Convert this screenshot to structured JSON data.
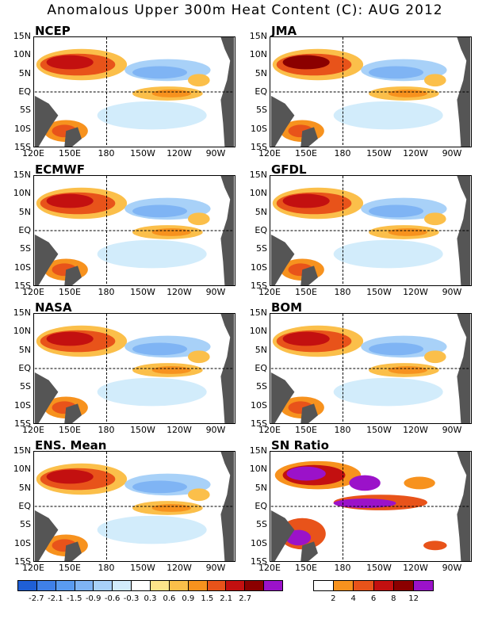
{
  "title": "Anomalous Upper 300m Heat Content (C): AUG 2012",
  "panels": [
    {
      "id": "ncep",
      "label": "NCEP"
    },
    {
      "id": "jma",
      "label": "JMA"
    },
    {
      "id": "ecmwf",
      "label": "ECMWF"
    },
    {
      "id": "gfdl",
      "label": "GFDL"
    },
    {
      "id": "nasa",
      "label": "NASA"
    },
    {
      "id": "bom",
      "label": "BOM"
    },
    {
      "id": "ens",
      "label": "ENS. Mean"
    },
    {
      "id": "sn",
      "label": "SN Ratio"
    }
  ],
  "lat_ticks": [
    "15N",
    "10N",
    "5N",
    "EQ",
    "5S",
    "10S",
    "15S"
  ],
  "lon_ticks": [
    "120E",
    "150E",
    "180",
    "150W",
    "120W",
    "90W"
  ],
  "anomaly_colorbar": {
    "colors": [
      "#1f5fd6",
      "#3f80e8",
      "#5a9bf0",
      "#7fb4f4",
      "#a8d1f8",
      "#d2ecfb",
      "#ffffff",
      "#fde58a",
      "#fbbf4a",
      "#f7921e",
      "#e8531a",
      "#c31010",
      "#8b0000",
      "#9b12c9"
    ],
    "labels": [
      "-2.7",
      "-2.1",
      "-1.5",
      "-0.9",
      "-0.6",
      "-0.3",
      "0.3",
      "0.6",
      "0.9",
      "1.5",
      "2.1",
      "2.7"
    ]
  },
  "sn_colorbar": {
    "colors": [
      "#ffffff",
      "#f7921e",
      "#e8531a",
      "#c31010",
      "#8b0000",
      "#9b12c9"
    ],
    "labels": [
      "2",
      "4",
      "6",
      "8",
      "12"
    ]
  }
}
